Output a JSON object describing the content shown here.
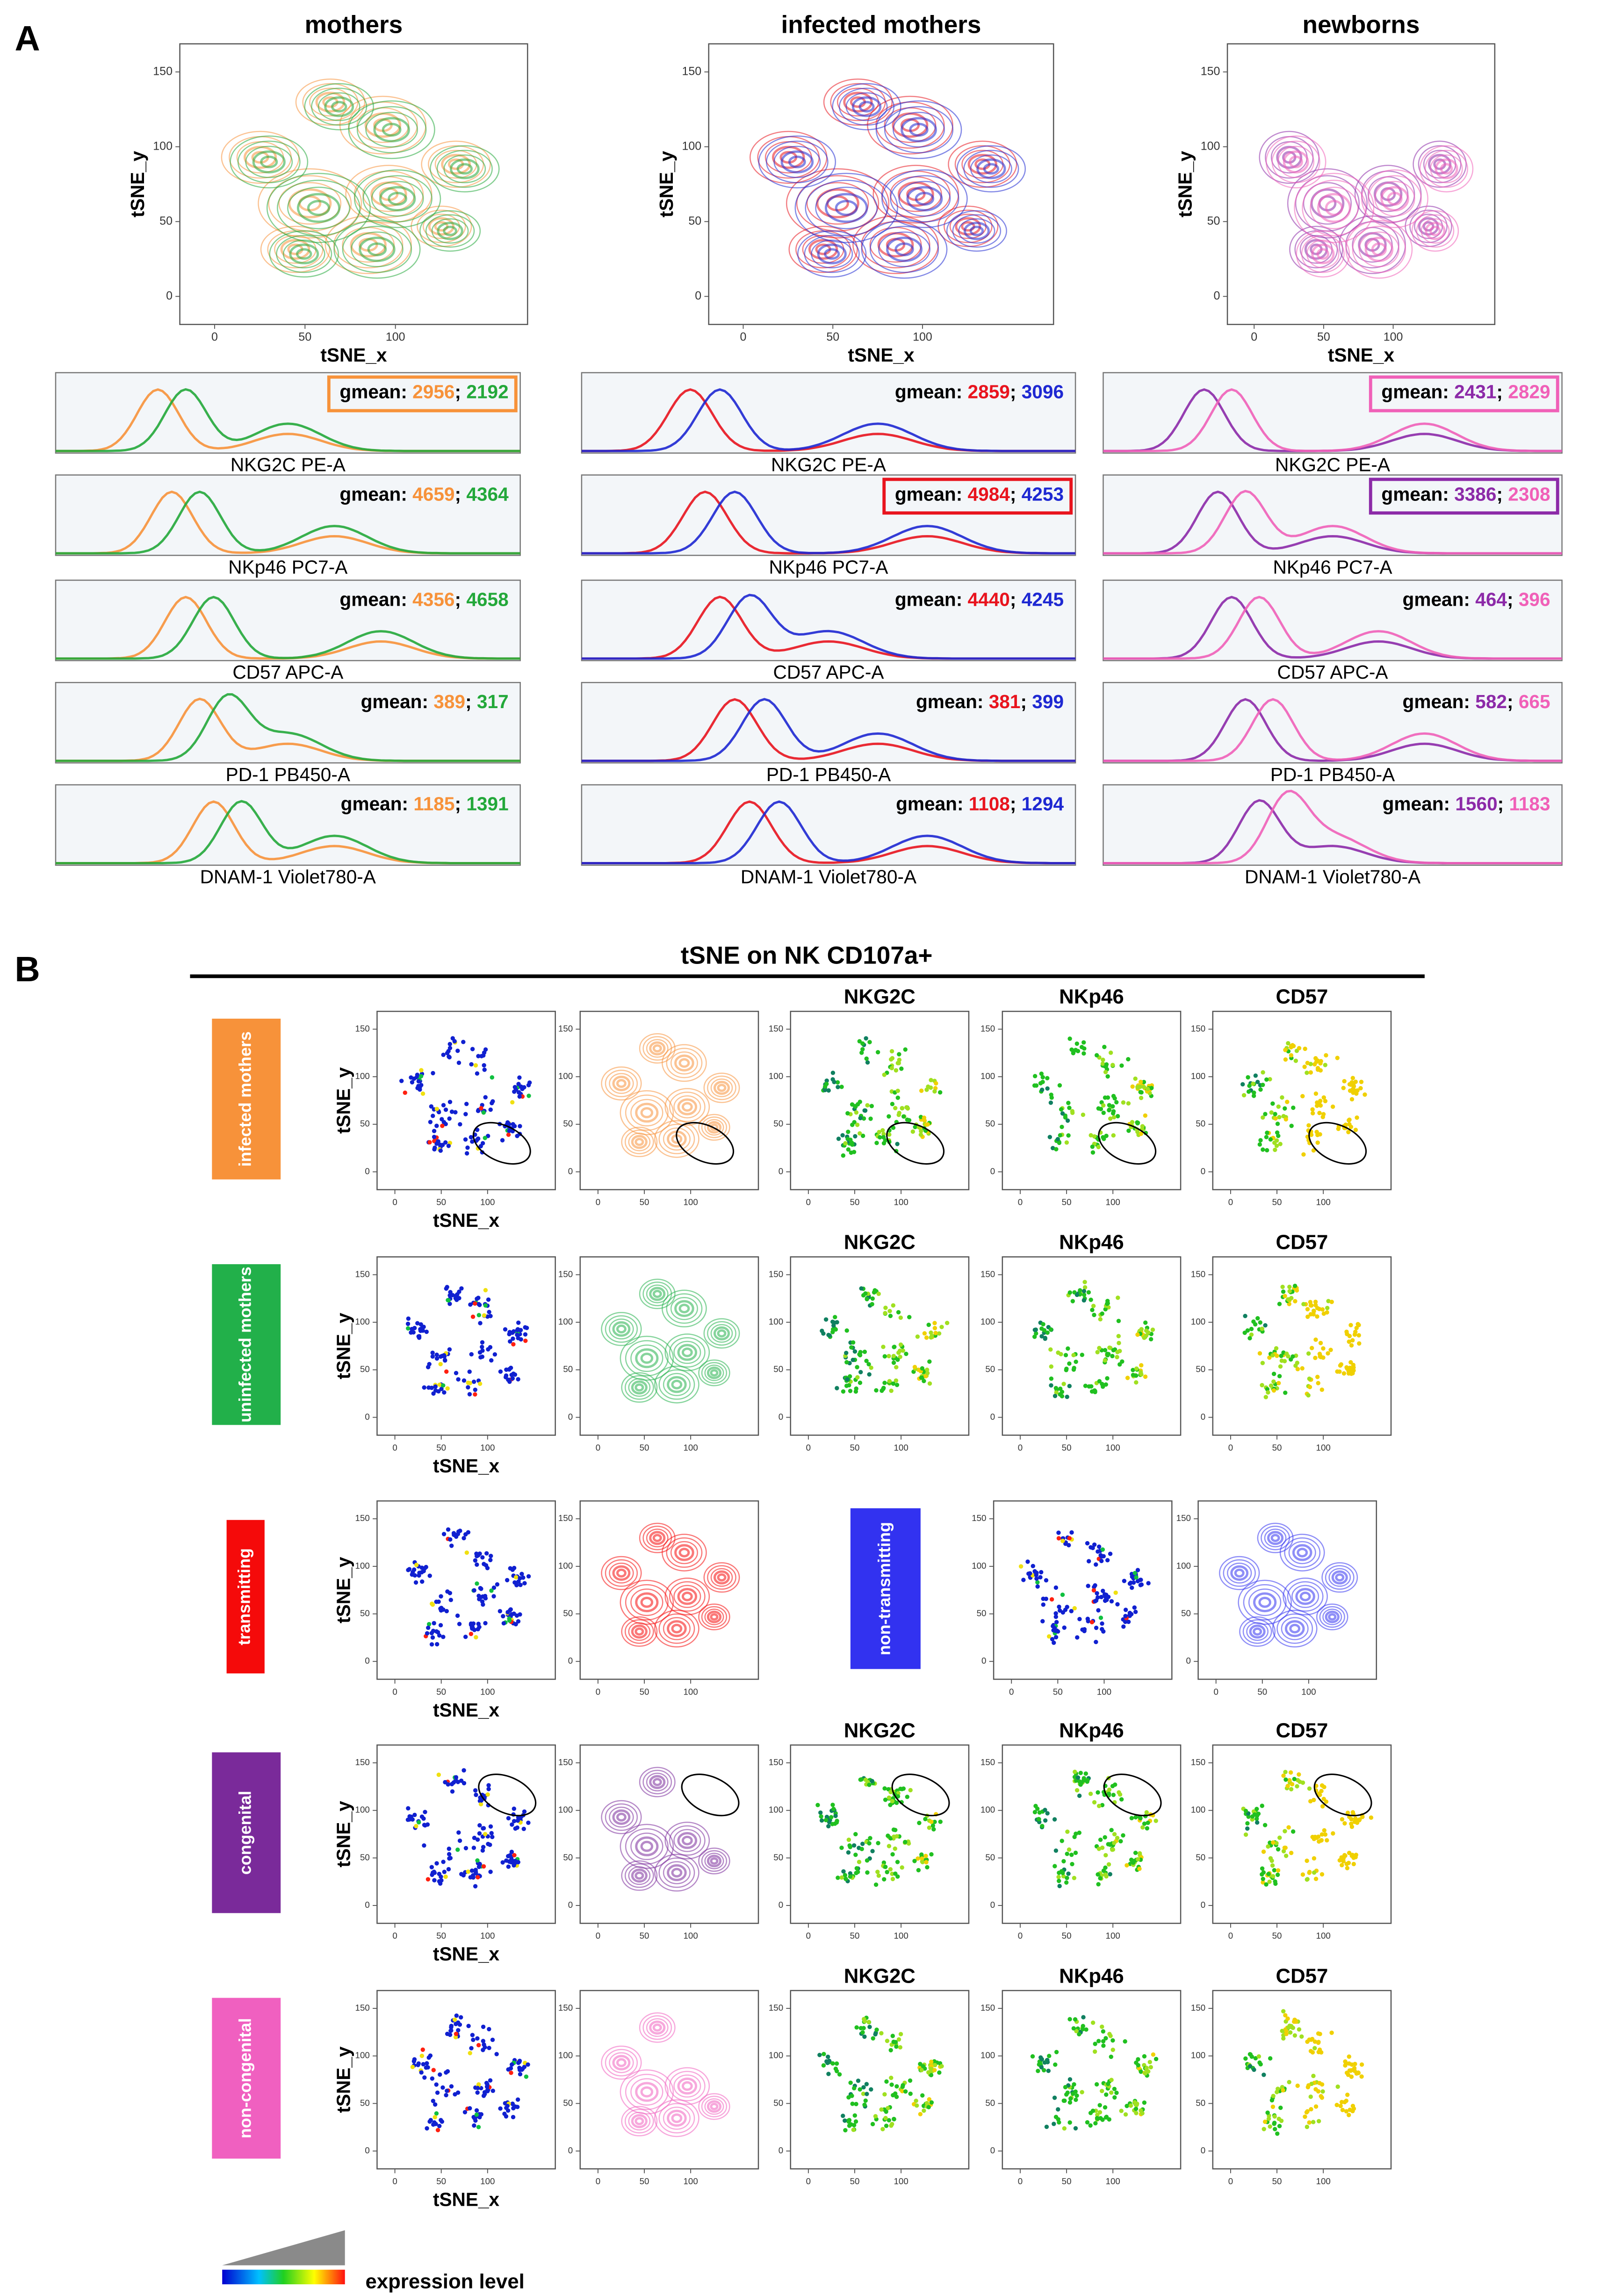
{
  "tsne_axes": {
    "xlabel": "tSNE_x",
    "ylabel": "tSNE_y",
    "xticks": [
      0,
      50,
      100
    ],
    "yticks": [
      0,
      50,
      100,
      150
    ]
  },
  "gmean_label": "gmean:",
  "separator": ";",
  "panel_a": {
    "label": "A",
    "columns": [
      {
        "title": "mothers",
        "colors": [
          "#f7923a",
          "#23a83a"
        ],
        "histograms": [
          {
            "marker": "NKG2C PE-A",
            "values": [
              2956,
              2192
            ],
            "box_color": "#f7923a"
          },
          {
            "marker": "NKp46 PC7-A",
            "values": [
              4659,
              4364
            ]
          },
          {
            "marker": "CD57 APC-A",
            "values": [
              4356,
              4658
            ]
          },
          {
            "marker": "PD-1 PB450-A",
            "values": [
              389,
              317
            ]
          },
          {
            "marker": "DNAM-1 Violet780-A",
            "values": [
              1185,
              1391
            ]
          }
        ]
      },
      {
        "title": "infected mothers",
        "colors": [
          "#e8141e",
          "#1e28d2"
        ],
        "histograms": [
          {
            "marker": "NKG2C PE-A",
            "values": [
              2859,
              3096
            ]
          },
          {
            "marker": "NKp46 PC7-A",
            "values": [
              4984,
              4253
            ],
            "box_color": "#e8141e"
          },
          {
            "marker": "CD57 APC-A",
            "values": [
              4440,
              4245
            ]
          },
          {
            "marker": "PD-1 PB450-A",
            "values": [
              381,
              399
            ]
          },
          {
            "marker": "DNAM-1 Violet780-A",
            "values": [
              1108,
              1294
            ]
          }
        ]
      },
      {
        "title": "newborns",
        "colors": [
          "#8c2aa8",
          "#f060b8"
        ],
        "histograms": [
          {
            "marker": "NKG2C PE-A",
            "values": [
              2431,
              2829
            ],
            "box_color": "#f060b8"
          },
          {
            "marker": "NKp46 PC7-A",
            "values": [
              3386,
              2308
            ],
            "box_color": "#8c2aa8"
          },
          {
            "marker": "CD57 APC-A",
            "values": [
              464,
              396
            ]
          },
          {
            "marker": "PD-1 PB450-A",
            "values": [
              582,
              665
            ]
          },
          {
            "marker": "DNAM-1 Violet780-A",
            "values": [
              1560,
              1183
            ]
          }
        ]
      }
    ]
  },
  "panel_b": {
    "label": "B",
    "title": "tSNE on NK CD107a+",
    "markers": [
      "NKG2C",
      "NKp46",
      "CD57"
    ],
    "rows": [
      {
        "groups": [
          {
            "label": "infected mothers",
            "color": "#f7923a"
          }
        ],
        "show_markers": true,
        "gate": true
      },
      {
        "groups": [
          {
            "label": "uninfected mothers",
            "color": "#22b04a"
          }
        ],
        "show_markers": true
      },
      {
        "groups": [
          {
            "label": "transmitting",
            "color": "#f50a0a"
          },
          {
            "label": "non-transmitting",
            "color": "#3232f0"
          }
        ]
      },
      {
        "groups": [
          {
            "label": "congenital",
            "color": "#7a2a9a"
          }
        ],
        "show_markers": true,
        "gate": true
      },
      {
        "groups": [
          {
            "label": "non-congenital",
            "color": "#f060c0"
          }
        ],
        "show_markers": true
      }
    ]
  },
  "legend": {
    "label": "expression level"
  }
}
